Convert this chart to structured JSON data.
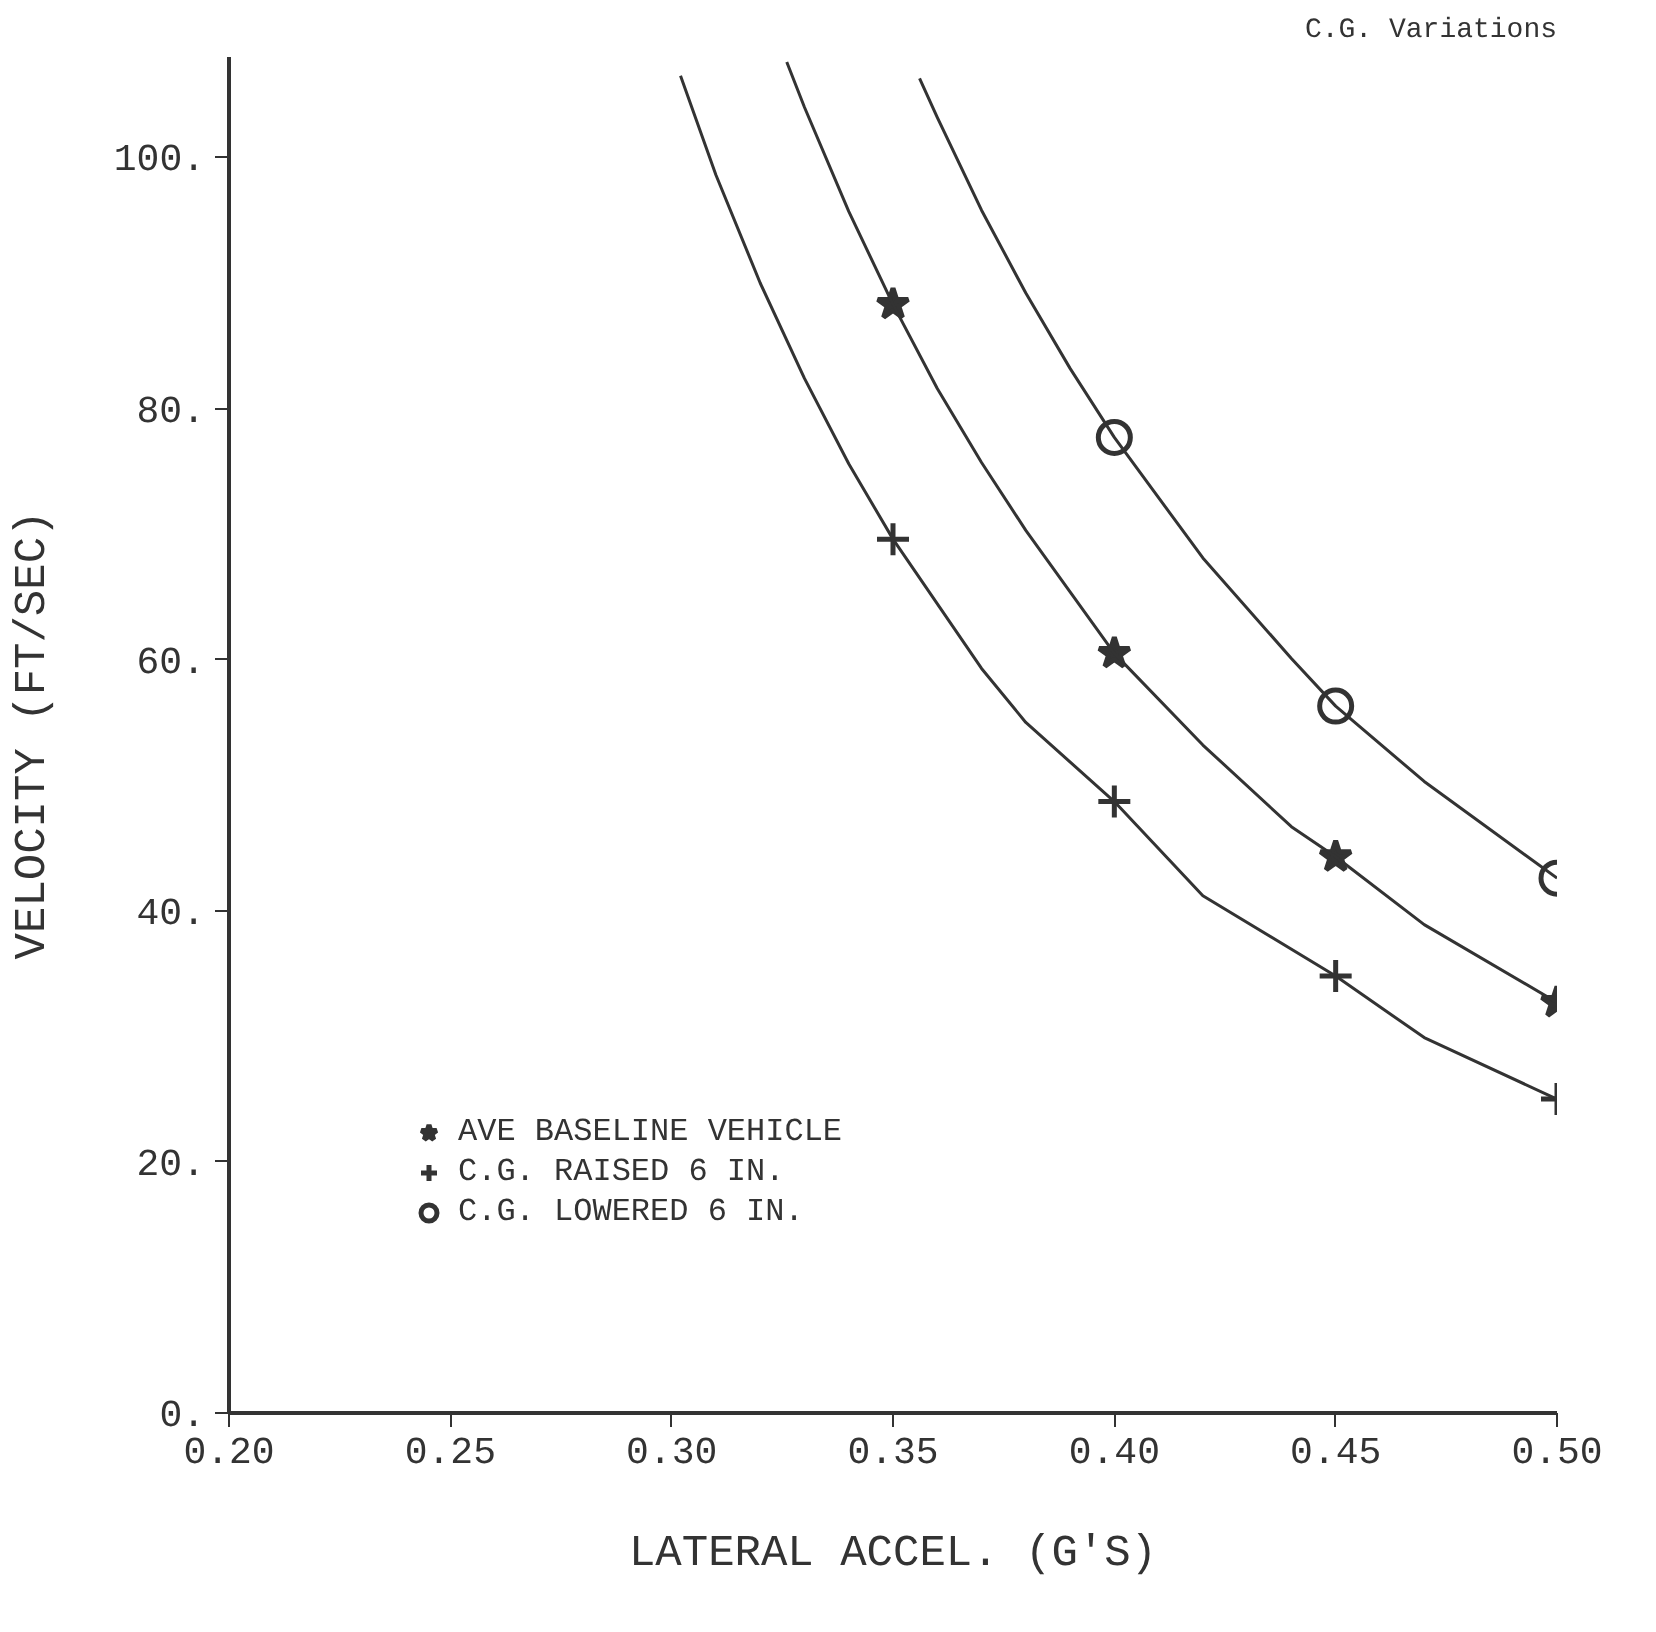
{
  "chart_data": {
    "type": "scatter",
    "title": "C.G. Variations",
    "xlabel": "LATERAL ACCEL. (G'S)",
    "ylabel": "VELOCITY (FT/SEC)",
    "xlim": [
      0.2,
      0.5
    ],
    "ylim": [
      0,
      108
    ],
    "xticks": [
      {
        "value": 0.2,
        "label": "0.20"
      },
      {
        "value": 0.25,
        "label": "0.25"
      },
      {
        "value": 0.3,
        "label": "0.30"
      },
      {
        "value": 0.35,
        "label": "0.35"
      },
      {
        "value": 0.4,
        "label": "0.40"
      },
      {
        "value": 0.45,
        "label": "0.45"
      },
      {
        "value": 0.5,
        "label": "0.50"
      }
    ],
    "yticks": [
      {
        "value": 0,
        "label": "0."
      },
      {
        "value": 20,
        "label": "20."
      },
      {
        "value": 40,
        "label": "40."
      },
      {
        "value": 60,
        "label": "60."
      },
      {
        "value": 80,
        "label": "80."
      },
      {
        "value": 100,
        "label": "100."
      }
    ],
    "grid": false,
    "legend": "bottom left",
    "series": [
      {
        "name": "AVE BASELINE VEHICLE",
        "color": "#333333",
        "marker": "star",
        "x": [
          0.35,
          0.4,
          0.45,
          0.5
        ],
        "values": [
          88.3,
          60.5,
          44.3,
          32.7
        ]
      },
      {
        "name": "C.G. RAISED 6 IN.",
        "color": "#333333",
        "marker": "cross",
        "x": [
          0.35,
          0.4,
          0.45,
          0.5
        ],
        "values": [
          69.6,
          48.7,
          34.8,
          25
        ]
      },
      {
        "name": "C.G. LOWERED 6 IN.",
        "color": "#333333",
        "marker": "circle",
        "x": [
          0.4,
          0.45,
          0.5
        ],
        "values": [
          77.7,
          56.3,
          42.6
        ]
      },
      {
        "type": "line",
        "color": "#333333",
        "x": [
          0.326,
          0.33,
          0.34,
          0.35,
          0.36,
          0.37,
          0.38,
          0.39,
          0.4,
          0.42,
          0.44,
          0.45,
          0.47,
          0.5
        ],
        "values": [
          107.6,
          104.0,
          95.7,
          88.3,
          81.6,
          75.7,
          70.3,
          65.4,
          60.5,
          53.2,
          46.7,
          44.3,
          38.9,
          32.7
        ]
      },
      {
        "type": "line",
        "color": "#333333",
        "x": [
          0.302,
          0.31,
          0.32,
          0.33,
          0.34,
          0.35,
          0.37,
          0.38,
          0.4,
          0.42,
          0.45,
          0.47,
          0.5
        ],
        "values": [
          106.5,
          98.6,
          90.0,
          82.4,
          75.6,
          69.6,
          59.3,
          55.0,
          48.7,
          41.2,
          34.8,
          29.9,
          25
        ]
      },
      {
        "type": "line",
        "color": "#333333",
        "x": [
          0.356,
          0.36,
          0.37,
          0.38,
          0.39,
          0.4,
          0.42,
          0.44,
          0.45,
          0.47,
          0.5
        ],
        "values": [
          106.3,
          103.2,
          95.8,
          89.2,
          83.2,
          77.7,
          68.1,
          60.1,
          56.3,
          50.3,
          42.6
        ]
      }
    ]
  }
}
